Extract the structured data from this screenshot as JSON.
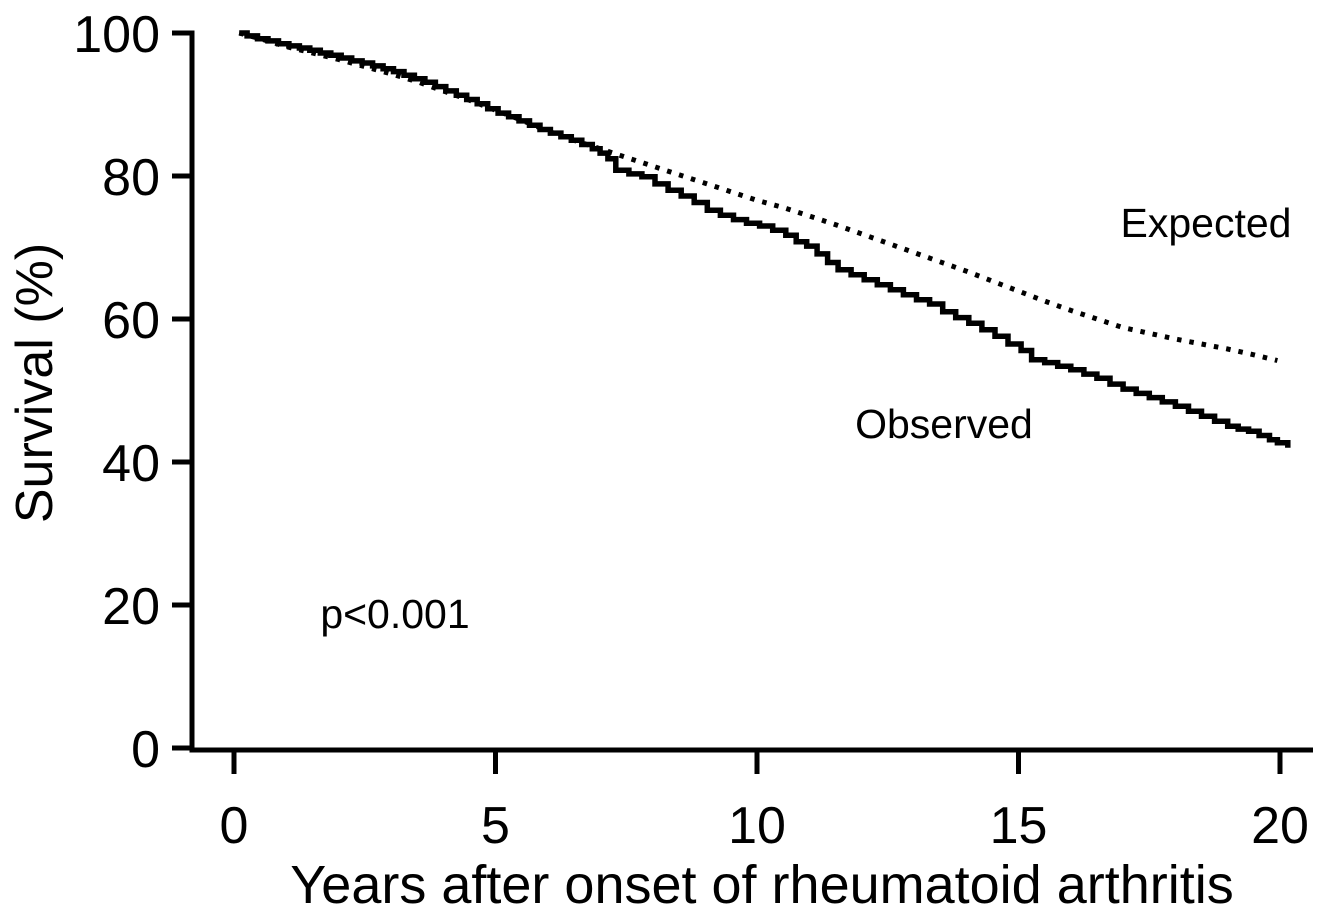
{
  "figure": {
    "background_color": "#ffffff",
    "ink_color": "#000000"
  },
  "chart_data": {
    "type": "line",
    "title": "",
    "xlabel": "Years after onset of rheumatoid arthritis",
    "ylabel": "Survival (%)",
    "xlim": [
      0,
      20.6
    ],
    "ylim": [
      0,
      100
    ],
    "x_ticks": [
      0,
      5,
      10,
      15,
      20
    ],
    "y_ticks": [
      0,
      20,
      40,
      60,
      80,
      100
    ],
    "grid": false,
    "legend_position": "inline-labels",
    "annotations": [
      {
        "text": "p<0.001",
        "x": 3.1,
        "y": 17
      }
    ],
    "series": [
      {
        "name": "Expected",
        "style": "dotted",
        "step": false,
        "label_anchor": {
          "x": 18.6,
          "y": 71.5
        },
        "points": [
          [
            0.1,
            100.0
          ],
          [
            0.5,
            99.2
          ],
          [
            1.0,
            98.1
          ],
          [
            1.5,
            97.2
          ],
          [
            2.0,
            96.3
          ],
          [
            2.5,
            95.3
          ],
          [
            3.0,
            94.3
          ],
          [
            3.5,
            93.2
          ],
          [
            4.0,
            91.9
          ],
          [
            4.5,
            90.6
          ],
          [
            5.0,
            89.2
          ],
          [
            5.5,
            87.8
          ],
          [
            6.0,
            86.3
          ],
          [
            6.5,
            85.0
          ],
          [
            7.0,
            83.8
          ],
          [
            7.5,
            82.6
          ],
          [
            8.0,
            81.4
          ],
          [
            8.5,
            80.2
          ],
          [
            9.0,
            79.0
          ],
          [
            9.5,
            77.8
          ],
          [
            10.0,
            76.6
          ],
          [
            10.5,
            75.6
          ],
          [
            11.0,
            74.4
          ],
          [
            11.5,
            73.2
          ],
          [
            12.0,
            71.9
          ],
          [
            12.5,
            70.6
          ],
          [
            13.0,
            69.3
          ],
          [
            13.5,
            68.0
          ],
          [
            14.0,
            66.7
          ],
          [
            14.5,
            65.3
          ],
          [
            15.0,
            63.9
          ],
          [
            15.5,
            62.5
          ],
          [
            16.0,
            61.2
          ],
          [
            16.5,
            60.0
          ],
          [
            17.0,
            58.8
          ],
          [
            17.5,
            58.0
          ],
          [
            18.0,
            57.2
          ],
          [
            18.5,
            56.5
          ],
          [
            19.0,
            55.8
          ],
          [
            19.5,
            55.0
          ],
          [
            19.95,
            54.2
          ]
        ]
      },
      {
        "name": "Observed",
        "style": "solid",
        "step": true,
        "label_anchor": {
          "x": 13.6,
          "y": 43.4
        },
        "points": [
          [
            0.1,
            100.0
          ],
          [
            0.25,
            99.6
          ],
          [
            0.45,
            99.2
          ],
          [
            0.65,
            98.9
          ],
          [
            0.85,
            98.5
          ],
          [
            1.05,
            98.2
          ],
          [
            1.25,
            97.9
          ],
          [
            1.45,
            97.6
          ],
          [
            1.65,
            97.2
          ],
          [
            1.85,
            96.9
          ],
          [
            2.05,
            96.5
          ],
          [
            2.25,
            96.1
          ],
          [
            2.45,
            95.8
          ],
          [
            2.65,
            95.4
          ],
          [
            2.85,
            95.0
          ],
          [
            3.05,
            94.6
          ],
          [
            3.25,
            94.1
          ],
          [
            3.45,
            93.6
          ],
          [
            3.65,
            93.1
          ],
          [
            3.85,
            92.5
          ],
          [
            4.05,
            91.9
          ],
          [
            4.25,
            91.3
          ],
          [
            4.45,
            90.7
          ],
          [
            4.65,
            90.1
          ],
          [
            4.85,
            89.4
          ],
          [
            5.05,
            88.8
          ],
          [
            5.25,
            88.3
          ],
          [
            5.45,
            87.7
          ],
          [
            5.65,
            87.1
          ],
          [
            5.85,
            86.5
          ],
          [
            6.05,
            86.0
          ],
          [
            6.25,
            85.5
          ],
          [
            6.45,
            85.0
          ],
          [
            6.65,
            84.4
          ],
          [
            6.85,
            83.8
          ],
          [
            7.0,
            83.2
          ],
          [
            7.15,
            82.4
          ],
          [
            7.3,
            80.8
          ],
          [
            7.55,
            80.3
          ],
          [
            7.8,
            79.9
          ],
          [
            8.05,
            78.9
          ],
          [
            8.3,
            78.0
          ],
          [
            8.55,
            77.2
          ],
          [
            8.8,
            76.3
          ],
          [
            9.05,
            75.2
          ],
          [
            9.3,
            74.5
          ],
          [
            9.55,
            73.9
          ],
          [
            9.8,
            73.4
          ],
          [
            10.05,
            73.0
          ],
          [
            10.3,
            72.4
          ],
          [
            10.55,
            71.7
          ],
          [
            10.75,
            70.8
          ],
          [
            10.95,
            70.2
          ],
          [
            11.15,
            69.1
          ],
          [
            11.35,
            67.9
          ],
          [
            11.55,
            66.9
          ],
          [
            11.8,
            66.2
          ],
          [
            12.05,
            65.5
          ],
          [
            12.3,
            64.8
          ],
          [
            12.55,
            64.1
          ],
          [
            12.8,
            63.4
          ],
          [
            13.05,
            62.7
          ],
          [
            13.3,
            62.1
          ],
          [
            13.55,
            61.0
          ],
          [
            13.8,
            60.2
          ],
          [
            14.05,
            59.4
          ],
          [
            14.3,
            58.5
          ],
          [
            14.55,
            57.6
          ],
          [
            14.8,
            56.5
          ],
          [
            15.05,
            55.6
          ],
          [
            15.25,
            54.3
          ],
          [
            15.5,
            53.9
          ],
          [
            15.75,
            53.4
          ],
          [
            16.0,
            52.9
          ],
          [
            16.25,
            52.3
          ],
          [
            16.5,
            51.7
          ],
          [
            16.75,
            50.9
          ],
          [
            17.0,
            50.2
          ],
          [
            17.25,
            49.6
          ],
          [
            17.5,
            49.0
          ],
          [
            17.75,
            48.4
          ],
          [
            18.0,
            47.8
          ],
          [
            18.25,
            47.1
          ],
          [
            18.5,
            46.4
          ],
          [
            18.75,
            45.7
          ],
          [
            19.0,
            45.0
          ],
          [
            19.2,
            44.6
          ],
          [
            19.4,
            44.3
          ],
          [
            19.6,
            43.7
          ],
          [
            19.8,
            43.1
          ],
          [
            19.95,
            42.7
          ],
          [
            20.15,
            42.0
          ]
        ]
      }
    ]
  }
}
